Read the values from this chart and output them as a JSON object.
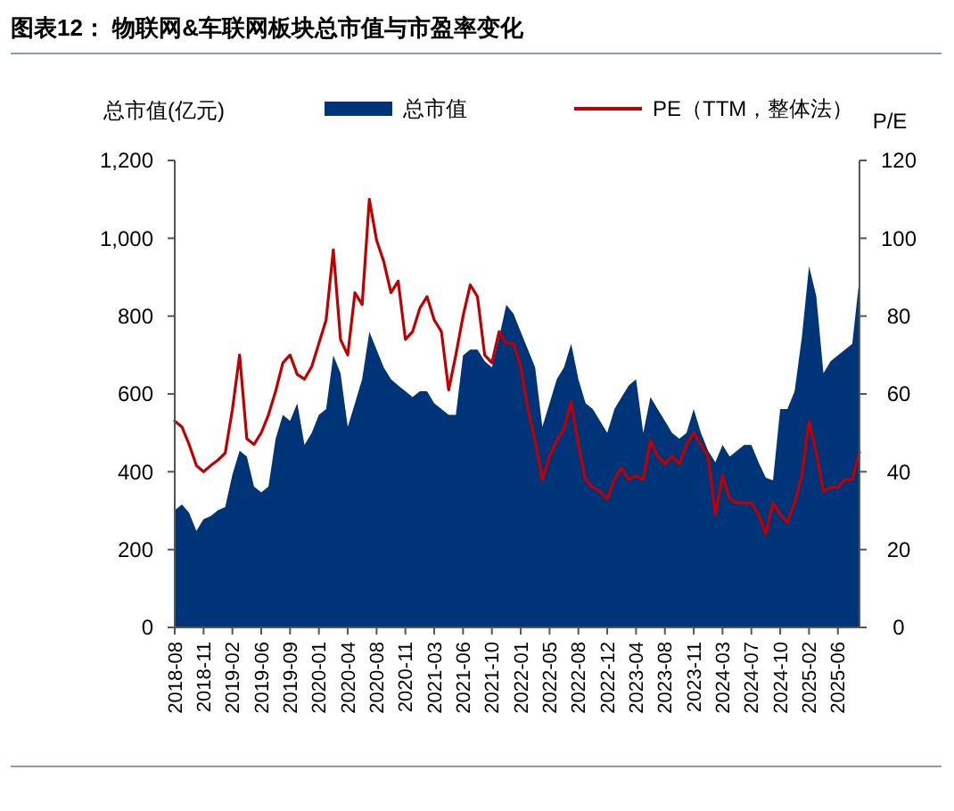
{
  "chart_data": {
    "type": "area",
    "title": "图表12：  物联网&车联网板块总市值与市盈率变化",
    "ylabel": "总市值(亿元)",
    "y2label": "P/E",
    "categories": [
      "2018-08",
      null,
      null,
      null,
      "2018-11",
      null,
      null,
      null,
      "2019-02",
      null,
      null,
      null,
      "2019-06",
      null,
      null,
      null,
      "2019-09",
      null,
      null,
      null,
      "2020-01",
      null,
      null,
      null,
      "2020-04",
      null,
      null,
      null,
      "2020-08",
      null,
      null,
      null,
      "2020-11",
      null,
      null,
      null,
      "2021-03",
      null,
      null,
      null,
      "2021-06",
      null,
      null,
      null,
      "2021-10",
      null,
      null,
      null,
      "2022-01",
      null,
      null,
      null,
      "2022-05",
      null,
      null,
      null,
      "2022-08",
      null,
      null,
      null,
      "2022-12",
      null,
      null,
      null,
      "2023-04",
      null,
      null,
      null,
      "2023-08",
      null,
      null,
      null,
      "2023-11",
      null,
      null,
      null,
      "2024-03",
      null,
      null,
      null,
      "2024-07",
      null,
      null,
      null,
      "2024-10",
      null,
      null,
      null,
      "2025-02",
      null,
      null,
      null,
      "2025-06",
      null,
      null,
      null
    ],
    "series": [
      {
        "name": "总市值",
        "color": "#003478",
        "values": [
          301,
          316,
          294,
          248,
          278,
          286,
          301,
          309,
          393,
          454,
          439,
          362,
          347,
          362,
          485,
          546,
          531,
          576,
          469,
          500,
          546,
          561,
          699,
          653,
          515,
          576,
          638,
          760,
          714,
          668,
          638,
          622,
          607,
          592,
          607,
          607,
          576,
          561,
          546,
          546,
          699,
          714,
          714,
          684,
          668,
          745,
          829,
          806,
          760,
          714,
          668,
          515,
          576,
          638,
          668,
          729,
          638,
          576,
          561,
          531,
          500,
          561,
          592,
          622,
          638,
          500,
          592,
          561,
          531,
          500,
          485,
          500,
          561,
          500,
          454,
          424,
          469,
          439,
          454,
          469,
          469,
          424,
          385,
          378,
          561,
          561,
          607,
          745,
          928,
          852,
          653,
          684,
          699,
          714,
          729,
          898
        ]
      },
      {
        "name": "PE（TTM，整体法）",
        "type": "line",
        "axis": "y2",
        "color": "#c00000",
        "values": [
          53,
          51.5,
          47,
          41.6,
          40,
          41.6,
          43,
          44.8,
          56,
          70,
          48.5,
          47,
          50,
          54.6,
          60.7,
          68,
          70,
          65,
          63.8,
          67,
          73,
          79,
          97,
          74,
          70,
          86,
          83,
          110,
          99.5,
          94,
          86,
          89,
          74,
          76,
          82,
          85,
          79,
          76,
          61,
          70,
          80,
          88,
          85,
          70,
          68,
          76,
          73,
          73,
          67,
          56,
          48,
          38,
          44,
          48,
          51,
          58,
          47,
          38,
          36,
          35,
          33,
          38,
          41,
          38,
          39,
          38,
          48,
          44,
          42,
          44,
          42,
          47,
          50,
          47,
          44,
          29,
          39,
          33,
          32,
          32,
          32,
          29,
          24,
          32,
          29,
          27,
          32,
          39,
          53,
          45,
          35,
          36,
          36,
          38,
          38,
          45
        ]
      }
    ],
    "ylim": [
      0,
      1200
    ],
    "yticks": [
      0,
      {
        "value": 200,
        "label": "200"
      },
      {
        "value": 400,
        "label": "400"
      },
      {
        "value": 600,
        "label": "600"
      },
      {
        "value": 800,
        "label": "800"
      },
      {
        "value": 1000,
        "label": "1,000"
      },
      {
        "value": 1200,
        "label": "1,200"
      }
    ],
    "y2lim": [
      0,
      120
    ],
    "y2ticks": [
      0,
      20,
      40,
      60,
      80,
      100,
      120
    ],
    "legend": "top",
    "grid": false
  }
}
